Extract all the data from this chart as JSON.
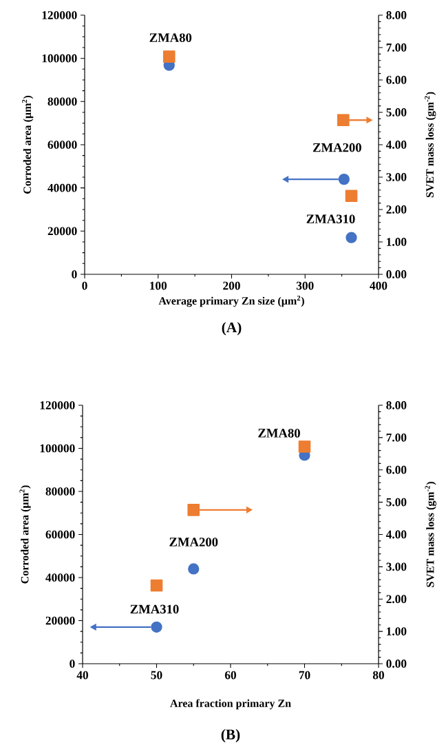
{
  "chart_data": [
    {
      "type": "scatter",
      "title": "(A)",
      "xlabel": "Average primary  Zn size (µm$^{2}$)",
      "ylabel": "Corroded  area (µm$^{2}$)",
      "y2label": "SVET mass loss (gm$^{-2}$)",
      "xlim": [
        0,
        400
      ],
      "xticks": [
        0,
        100,
        200,
        300,
        400
      ],
      "ylim": [
        0,
        120000
      ],
      "yticks": [
        0,
        20000,
        40000,
        60000,
        80000,
        100000,
        120000
      ],
      "y2lim": [
        0,
        8
      ],
      "y2ticks": [
        {
          "value": 0,
          "label": "0.00"
        },
        {
          "value": 1,
          "label": "1.00"
        },
        {
          "value": 2,
          "label": "2.00"
        },
        {
          "value": 3,
          "label": "3.00"
        },
        {
          "value": 4,
          "label": "4.00"
        },
        {
          "value": 5,
          "label": "5.00"
        },
        {
          "value": 6,
          "label": "6.00"
        },
        {
          "value": 7,
          "label": "7.00"
        },
        {
          "value": 8,
          "label": "8.00"
        }
      ],
      "series": [
        {
          "x": [
            115,
            353,
            363
          ],
          "values": [
            96800,
            44000,
            17000
          ],
          "color": "#4472c4",
          "marker": "circle"
        },
        {
          "x": [
            115,
            352,
            363
          ],
          "values": [
            6.72,
            4.76,
            2.42
          ],
          "color": "#ed7d31",
          "marker": "square",
          "axis": "y2"
        }
      ],
      "annotations": [
        {
          "text": "ZMA80",
          "x": 115,
          "y": 96800
        },
        {
          "text": "ZMA200",
          "x": 353,
          "y": 44000
        },
        {
          "text": "ZMA310",
          "x": 363,
          "y": 17000
        }
      ]
    },
    {
      "type": "scatter",
      "title": "(B)",
      "xlabel": "Area fraction primary  Zn",
      "ylabel": "Corroded  area (µm$^{2}$)",
      "y2label": "SVET mass loss (gm$^{-2}$)",
      "xlim": [
        40,
        80
      ],
      "xticks": [
        40,
        50,
        60,
        70,
        80
      ],
      "ylim": [
        0,
        120000
      ],
      "yticks": [
        0,
        20000,
        40000,
        60000,
        80000,
        100000,
        120000
      ],
      "y2lim": [
        0,
        8
      ],
      "y2ticks": [
        {
          "value": 0,
          "label": "0.00"
        },
        {
          "value": 1,
          "label": "1.00"
        },
        {
          "value": 2,
          "label": "2.00"
        },
        {
          "value": 3,
          "label": "3.00"
        },
        {
          "value": 4,
          "label": "4.00"
        },
        {
          "value": 5,
          "label": "5.00"
        },
        {
          "value": 6,
          "label": "6.00"
        },
        {
          "value": 7,
          "label": "7.00"
        },
        {
          "value": 8,
          "label": "8.00"
        }
      ],
      "series": [
        {
          "x": [
            70,
            55,
            50
          ],
          "values": [
            96800,
            44000,
            17000
          ],
          "color": "#4472c4",
          "marker": "circle"
        },
        {
          "x": [
            70,
            55,
            50
          ],
          "values": [
            6.72,
            4.76,
            2.42
          ],
          "color": "#ed7d31",
          "marker": "square",
          "axis": "y2"
        }
      ],
      "annotations": [
        {
          "text": "ZMA80",
          "x": 70,
          "y": 96800
        },
        {
          "text": "ZMA200",
          "x": 55,
          "y": 44000
        },
        {
          "text": "ZMA310",
          "x": 50,
          "y": 17000
        }
      ]
    }
  ]
}
